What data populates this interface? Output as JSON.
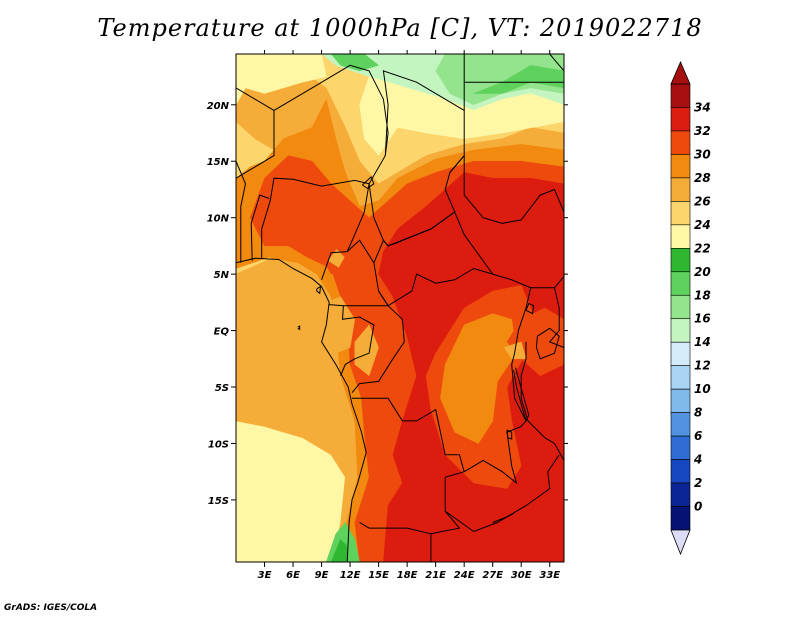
{
  "title": "Temperature at 1000hPa [C], VT: 2019022718",
  "credit": "GrADS: IGES/COLA",
  "map": {
    "lon_range": [
      0,
      34.5
    ],
    "lat_range": [
      -20.5,
      24.5
    ],
    "lon_ticks": [
      {
        "value": 3,
        "label": "3E"
      },
      {
        "value": 6,
        "label": "6E"
      },
      {
        "value": 9,
        "label": "9E"
      },
      {
        "value": 12,
        "label": "12E"
      },
      {
        "value": 15,
        "label": "15E"
      },
      {
        "value": 18,
        "label": "18E"
      },
      {
        "value": 21,
        "label": "21E"
      },
      {
        "value": 24,
        "label": "24E"
      },
      {
        "value": 27,
        "label": "27E"
      },
      {
        "value": 30,
        "label": "30E"
      },
      {
        "value": 33,
        "label": "33E"
      }
    ],
    "lat_ticks": [
      {
        "value": 20,
        "label": "20N"
      },
      {
        "value": 15,
        "label": "15N"
      },
      {
        "value": 10,
        "label": "10N"
      },
      {
        "value": 5,
        "label": "5N"
      },
      {
        "value": 0,
        "label": "EQ"
      },
      {
        "value": -5,
        "label": "5S"
      },
      {
        "value": -10,
        "label": "10S"
      },
      {
        "value": -15,
        "label": "15S"
      }
    ]
  },
  "colorbar": {
    "levels": [
      "34",
      "32",
      "30",
      "28",
      "26",
      "24",
      "22",
      "20",
      "18",
      "16",
      "14",
      "12",
      "10",
      "8",
      "6",
      "4",
      "2",
      "0"
    ],
    "colors": [
      "#a50f0f",
      "#dd1c10",
      "#ef4a0e",
      "#f28a10",
      "#f6ac38",
      "#fcd66d",
      "#fef7a6",
      "#2fb732",
      "#5ed25c",
      "#93e48c",
      "#c4f5c0",
      "#d4ecfa",
      "#aad4f5",
      "#80b9ec",
      "#5193de",
      "#2f6dd4",
      "#1646c0",
      "#0b2694",
      "#071275"
    ],
    "end_low_color": "#dcdcf8"
  },
  "bands": [
    {
      "level": 24,
      "color": "#fef7a6"
    },
    {
      "level": 26,
      "color": "#fcd66d"
    },
    {
      "level": 28,
      "color": "#f6ac38"
    },
    {
      "level": 30,
      "color": "#f28a10"
    },
    {
      "level": 32,
      "color": "#ef4a0e"
    },
    {
      "level": 34,
      "color": "#dd1c10"
    }
  ],
  "cool_regions": [
    {
      "level": 16,
      "color": "#c4f5c0"
    },
    {
      "level": 18,
      "color": "#93e48c"
    },
    {
      "level": 20,
      "color": "#5ed25c"
    },
    {
      "level": 22,
      "color": "#2fb732"
    }
  ]
}
